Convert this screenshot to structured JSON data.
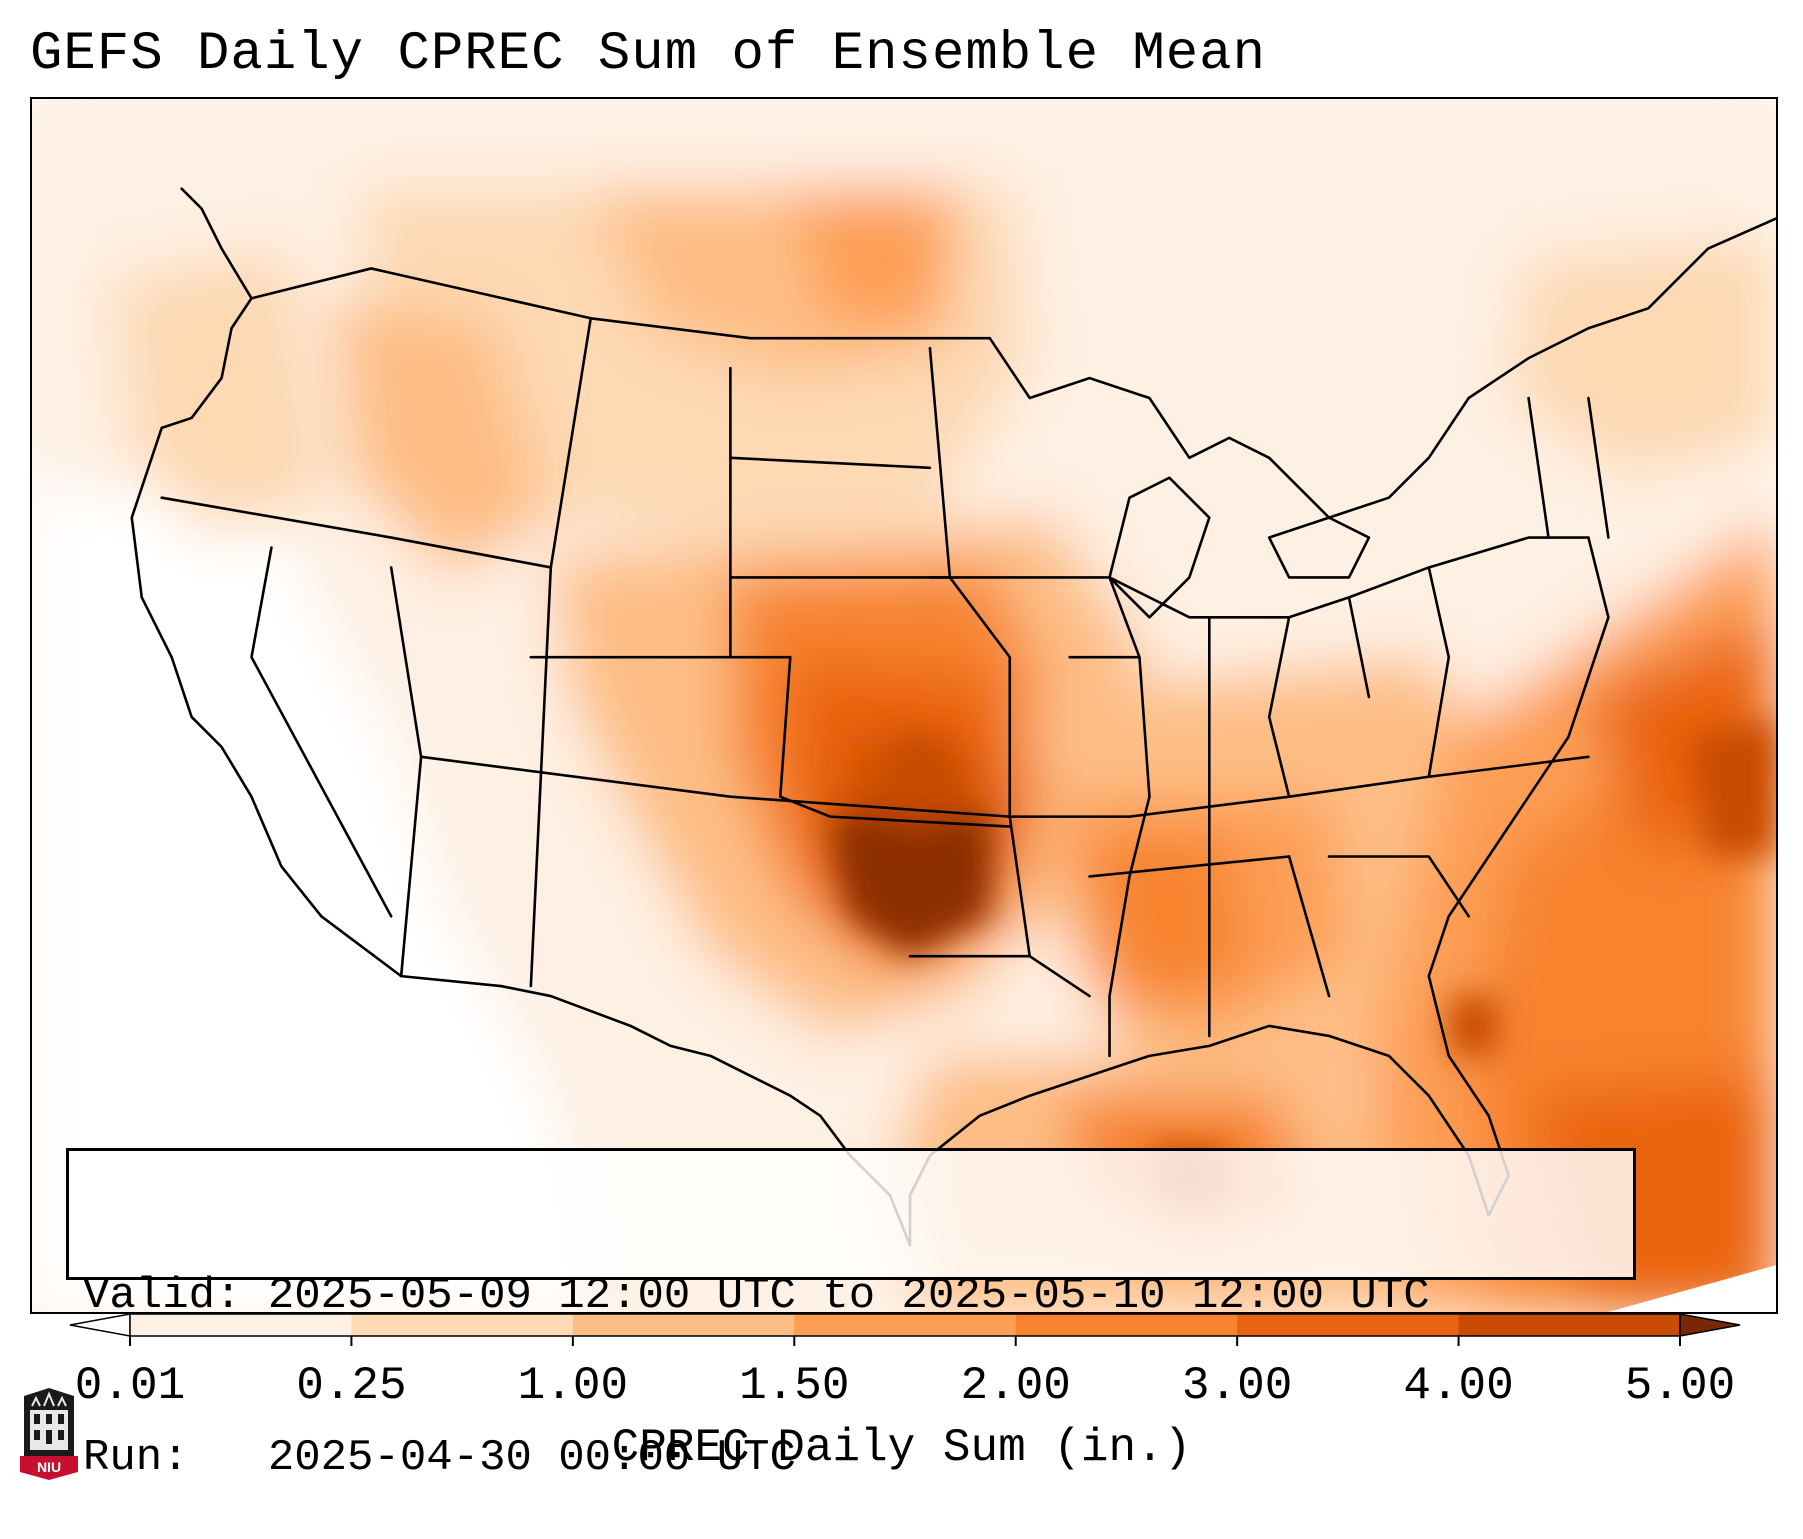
{
  "title": "GEFS Daily CPREC Sum of Ensemble Mean",
  "info": {
    "valid_line": "Valid: 2025-05-09 12:00 UTC to 2025-05-10 12:00 UTC",
    "run_line": "Run:   2025-04-30 00:00 UTC"
  },
  "colorbar": {
    "label": "CPREC Daily Sum (in.)",
    "ticks": [
      "0.01",
      "0.25",
      "1.00",
      "1.50",
      "2.00",
      "3.00",
      "4.00",
      "5.00"
    ],
    "colors": [
      "#fef0e3",
      "#fdd9b4",
      "#fdbe85",
      "#fd9e55",
      "#f7832f",
      "#ea6311",
      "#c84b06",
      "#8c2d04"
    ],
    "under_color": "#ffffff",
    "over_color": "#7a2703"
  },
  "map": {
    "region": "Contiguous United States",
    "land_background": "#fff6ee",
    "border_color": "#000000"
  },
  "logo": {
    "text": "NIU"
  }
}
